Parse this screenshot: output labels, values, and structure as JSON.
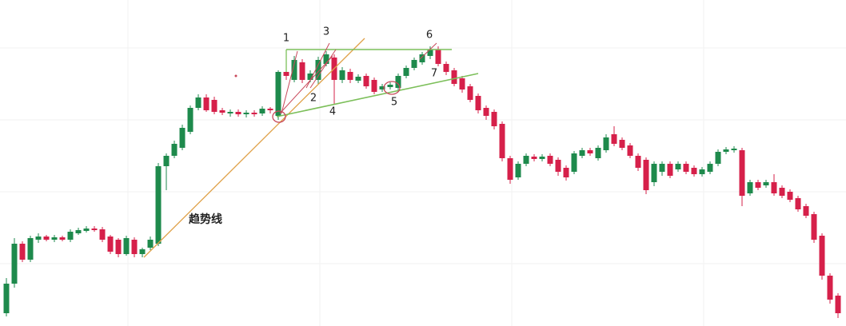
{
  "chart_data": {
    "type": "candlestick",
    "up_color": "#1e8a4c",
    "down_color": "#d6204a",
    "ylim": [
      0,
      408
    ],
    "annotations": [
      "1",
      "2",
      "3",
      "4",
      "5",
      "6",
      "7",
      "趋势线"
    ],
    "open": [
      16,
      53,
      103,
      83,
      108,
      112,
      108,
      111,
      108,
      116,
      119,
      122,
      121,
      112,
      108,
      90,
      108,
      90,
      98,
      103,
      200,
      213,
      223,
      243,
      273,
      286,
      283,
      270,
      266,
      268,
      265,
      267,
      266,
      272,
      263,
      318,
      308,
      330,
      308,
      308,
      328,
      336,
      308,
      318,
      307,
      313,
      308,
      296,
      299,
      298,
      313,
      323,
      330,
      338,
      346,
      328,
      320,
      310,
      300,
      288,
      273,
      268,
      253,
      210,
      186,
      203,
      212,
      209,
      213,
      208,
      198,
      193,
      213,
      220,
      210,
      220,
      240,
      233,
      226,
      213,
      208,
      180,
      193,
      203,
      196,
      203,
      198,
      190,
      193,
      203,
      218,
      220,
      220,
      166,
      180,
      176,
      180,
      173,
      168,
      160,
      150,
      140,
      113,
      63,
      38
    ],
    "high": [
      60,
      110,
      106,
      113,
      116,
      114,
      114,
      113,
      121,
      123,
      125,
      125,
      124,
      114,
      110,
      113,
      111,
      98,
      112,
      204,
      216,
      232,
      252,
      276,
      290,
      290,
      287,
      273,
      271,
      271,
      270,
      270,
      275,
      274,
      320,
      325,
      338,
      334,
      320,
      337,
      344,
      340,
      324,
      322,
      315,
      316,
      311,
      303,
      305,
      316,
      326,
      336,
      343,
      350,
      350,
      331,
      323,
      313,
      303,
      291,
      276,
      271,
      256,
      213,
      206,
      216,
      215,
      215,
      216,
      211,
      201,
      219,
      223,
      223,
      226,
      240,
      250,
      236,
      229,
      216,
      211,
      206,
      206,
      206,
      206,
      206,
      201,
      199,
      206,
      221,
      224,
      225,
      223,
      183,
      183,
      183,
      190,
      176,
      171,
      163,
      153,
      143,
      116,
      66,
      41
    ],
    "low": [
      12,
      48,
      80,
      80,
      104,
      106,
      105,
      106,
      105,
      114,
      117,
      118,
      105,
      90,
      86,
      88,
      86,
      86,
      95,
      100,
      170,
      210,
      220,
      240,
      270,
      268,
      265,
      264,
      262,
      262,
      261,
      262,
      263,
      266,
      258,
      308,
      305,
      304,
      305,
      303,
      325,
      278,
      304,
      304,
      304,
      297,
      290,
      293,
      296,
      295,
      310,
      320,
      327,
      334,
      325,
      314,
      300,
      292,
      280,
      266,
      258,
      246,
      206,
      178,
      183,
      200,
      206,
      206,
      200,
      188,
      182,
      190,
      210,
      213,
      207,
      217,
      225,
      220,
      210,
      194,
      165,
      175,
      188,
      185,
      193,
      190,
      187,
      187,
      190,
      200,
      215,
      217,
      150,
      163,
      170,
      173,
      163,
      160,
      155,
      143,
      135,
      104,
      58,
      28,
      10
    ],
    "close": [
      53,
      103,
      83,
      110,
      112,
      108,
      111,
      108,
      118,
      120,
      122,
      120,
      108,
      93,
      90,
      110,
      90,
      96,
      108,
      200,
      213,
      228,
      248,
      273,
      286,
      270,
      268,
      267,
      268,
      265,
      267,
      265,
      272,
      270,
      318,
      313,
      333,
      308,
      316,
      333,
      340,
      308,
      320,
      308,
      312,
      300,
      293,
      300,
      302,
      313,
      323,
      333,
      340,
      346,
      328,
      318,
      303,
      296,
      283,
      270,
      263,
      250,
      210,
      183,
      203,
      213,
      209,
      212,
      203,
      193,
      186,
      216,
      220,
      216,
      223,
      236,
      228,
      223,
      213,
      198,
      170,
      203,
      203,
      188,
      203,
      193,
      190,
      196,
      203,
      218,
      221,
      222,
      163,
      180,
      173,
      180,
      166,
      163,
      158,
      146,
      138,
      108,
      63,
      33,
      16
    ]
  }
}
